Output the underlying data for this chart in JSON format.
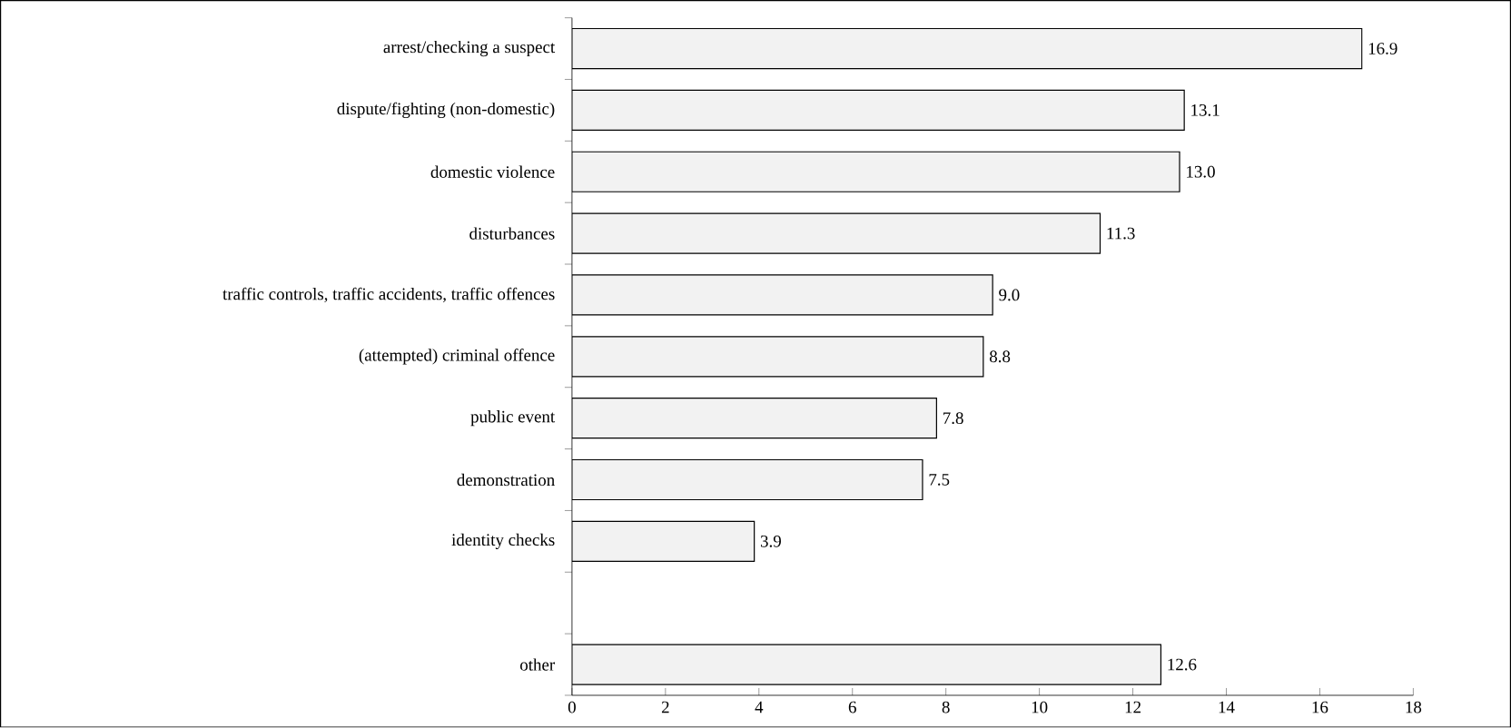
{
  "chart_data": {
    "type": "bar",
    "orientation": "horizontal",
    "categories": [
      "arrest/checking a suspect",
      "dispute/fighting (non-domestic)",
      "domestic violence",
      "disturbances",
      "traffic controls, traffic accidents, traffic offences",
      "(attempted) criminal offence",
      "public event",
      "demonstration",
      "identity checks",
      null,
      "other"
    ],
    "values": [
      16.9,
      13.1,
      13.0,
      11.3,
      9.0,
      8.8,
      7.8,
      7.5,
      3.9,
      null,
      12.6
    ],
    "value_labels": [
      "16.9",
      "13.1",
      "13.0",
      "11.3",
      "9.0",
      "8.8",
      "7.8",
      "7.5",
      "3.9",
      null,
      "12.6"
    ],
    "color": "#f2f2f2",
    "xlim": [
      0,
      18
    ],
    "xticks": [
      0,
      2,
      4,
      6,
      8,
      10,
      12,
      14,
      16,
      18
    ]
  }
}
